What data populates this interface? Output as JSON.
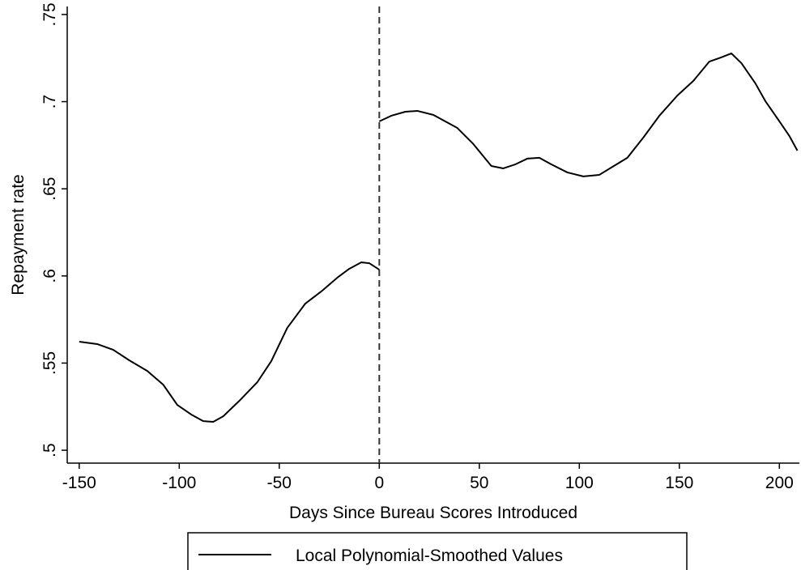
{
  "chart_data": {
    "type": "line",
    "x_label": "Days Since Bureau Scores Introduced",
    "y_label": "Repayment rate",
    "x": [
      -150,
      -141,
      -133,
      -125,
      -116,
      -108,
      -101,
      -94,
      -88,
      -83,
      -78,
      -70,
      -61,
      -54,
      -46,
      -37,
      -29,
      -21,
      -15,
      -9,
      -5,
      0,
      0,
      0,
      6,
      13,
      19,
      27,
      39,
      47,
      56,
      62,
      68,
      74,
      80,
      86,
      94,
      102,
      110,
      118,
      124,
      132,
      140,
      149,
      157,
      165,
      171,
      176,
      181,
      188,
      193,
      200,
      205,
      209
    ],
    "series": [
      {
        "name": "Local Polynomial-Smoothed Values",
        "color": "#000000",
        "values": [
          0.5623,
          0.5609,
          0.5576,
          0.5516,
          0.5455,
          0.5376,
          0.526,
          0.5205,
          0.5167,
          0.5163,
          0.5195,
          0.5283,
          0.539,
          0.5511,
          0.5702,
          0.5841,
          0.5911,
          0.599,
          0.6041,
          0.6078,
          0.6073,
          0.6036,
          null,
          0.6887,
          0.6919,
          0.6942,
          0.6947,
          0.6924,
          0.6849,
          0.6757,
          0.6631,
          0.6617,
          0.664,
          0.6673,
          0.6678,
          0.664,
          0.6594,
          0.6571,
          0.658,
          0.6636,
          0.6678,
          0.6794,
          0.6919,
          0.7035,
          0.7119,
          0.723,
          0.7254,
          0.7277,
          0.7221,
          0.7105,
          0.7003,
          0.6887,
          0.6803,
          0.6719
        ]
      }
    ],
    "xlim": [
      -156,
      210
    ],
    "ylim": [
      0.4926,
      0.7546
    ],
    "xticks": [
      -150,
      -100,
      -50,
      0,
      50,
      100,
      150,
      200
    ],
    "yticks": [
      {
        "value": 0.5,
        "label": ".5"
      },
      {
        "value": 0.55,
        "label": ".55"
      },
      {
        "value": 0.6,
        "label": ".6"
      },
      {
        "value": 0.65,
        "label": ".65"
      },
      {
        "value": 0.7,
        "label": ".7"
      },
      {
        "value": 0.75,
        "label": ".75"
      }
    ],
    "xline": 0,
    "legend": "bottom"
  }
}
